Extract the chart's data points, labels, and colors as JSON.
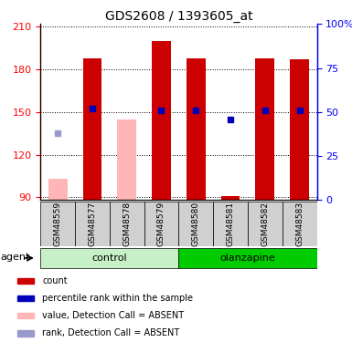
{
  "title": "GDS2608 / 1393605_at",
  "samples": [
    "GSM48559",
    "GSM48577",
    "GSM48578",
    "GSM48579",
    "GSM48580",
    "GSM48581",
    "GSM48582",
    "GSM48583"
  ],
  "bar_values": [
    103,
    188,
    145,
    200,
    188,
    91,
    188,
    187
  ],
  "bar_absent": [
    true,
    false,
    true,
    false,
    false,
    false,
    false,
    false
  ],
  "percentile_rank": [
    null,
    52,
    null,
    51,
    51,
    46,
    51,
    51
  ],
  "absent_rank_value": [
    135,
    null,
    null,
    null,
    null,
    null,
    null,
    null
  ],
  "groups": [
    "control",
    "control",
    "control",
    "control",
    "olanzapine",
    "olanzapine",
    "olanzapine",
    "olanzapine"
  ],
  "ylim_left": [
    88,
    212
  ],
  "ylim_right": [
    0,
    100
  ],
  "yticks_left": [
    90,
    120,
    150,
    180,
    210
  ],
  "yticks_right": [
    0,
    25,
    50,
    75,
    100
  ],
  "bar_color_present": "#cc0000",
  "bar_color_absent": "#ffb6b6",
  "rank_color_present": "#0000bb",
  "rank_color_absent": "#9999cc",
  "bar_width": 0.55,
  "agent_label": "agent",
  "control_color": "#c8f0c8",
  "olanzapine_color": "#00cc00",
  "legend_items": [
    {
      "color": "#cc0000",
      "label": "count"
    },
    {
      "color": "#0000bb",
      "label": "percentile rank within the sample"
    },
    {
      "color": "#ffb6b6",
      "label": "value, Detection Call = ABSENT"
    },
    {
      "color": "#9999cc",
      "label": "rank, Detection Call = ABSENT"
    }
  ]
}
